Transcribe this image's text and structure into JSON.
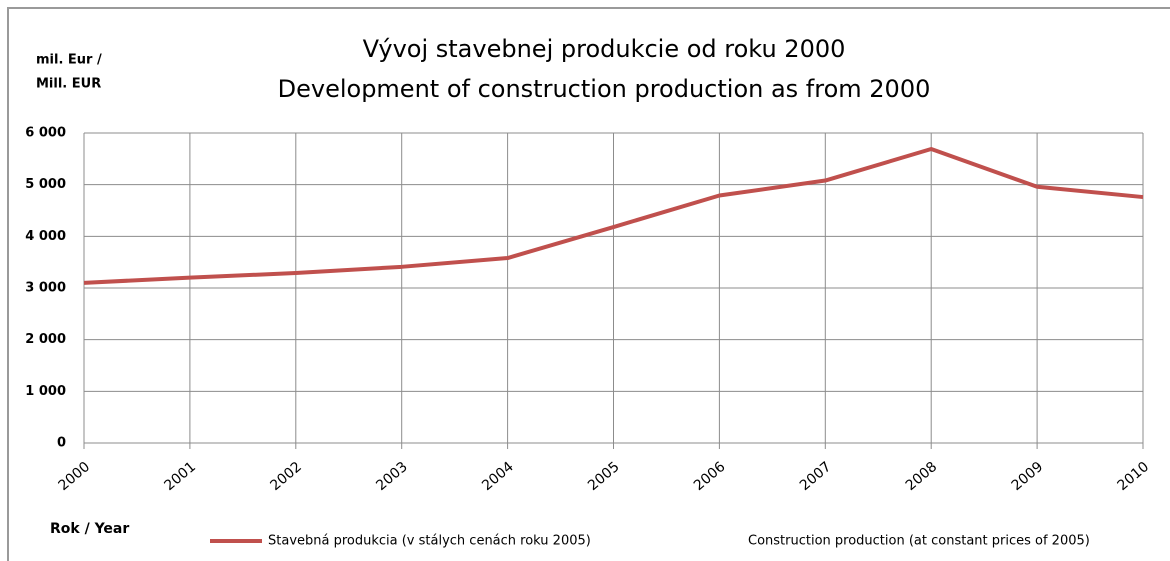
{
  "chart_data": {
    "type": "line",
    "title": "Vývoj stavebnej produkcie od roku 2000",
    "subtitle": "Development of construction production as from 2000",
    "ylabel": [
      "mil. Eur /",
      "Mill. EUR"
    ],
    "xlabel": "Rok / Year",
    "categories": [
      "2000",
      "2001",
      "2002",
      "2003",
      "2004",
      "2005",
      "2006",
      "2007",
      "2008",
      "2009",
      "2010"
    ],
    "series": [
      {
        "name": "Stavebná produkcia (v stálych cenách roku 2005)",
        "color": "#c0504d",
        "values": [
          3100,
          3200,
          3290,
          3410,
          3580,
          4180,
          4790,
          5080,
          5690,
          4960,
          4760
        ]
      }
    ],
    "legend_note": "Construction production (at constant prices of 2005)",
    "ylim": [
      0,
      6000
    ],
    "yticks": [
      0,
      {
        "value": 1000,
        "label": "1 000"
      },
      {
        "value": 2000,
        "label": "2 000"
      },
      {
        "value": 3000,
        "label": "3 000"
      },
      {
        "value": 4000,
        "label": "4 000"
      },
      {
        "value": 5000,
        "label": "5 000"
      },
      {
        "value": 6000,
        "label": "6 000"
      }
    ],
    "grid": true,
    "legend": "bottom"
  }
}
